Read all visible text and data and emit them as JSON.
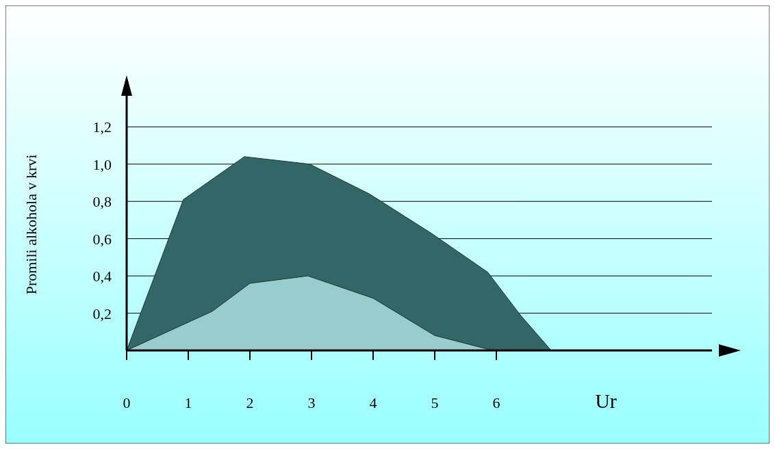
{
  "chart_data": {
    "type": "area",
    "xlabel": "Ur",
    "ylabel": "Promili alkohola v krvi",
    "xlim": [
      0,
      9.5
    ],
    "ylim": [
      0,
      1.44
    ],
    "xticks": [
      0,
      1,
      2,
      3,
      4,
      5,
      6
    ],
    "yticks": [
      {
        "value": 0.2,
        "label": "0,2"
      },
      {
        "value": 0.4,
        "label": "0,4"
      },
      {
        "value": 0.6,
        "label": "0,6"
      },
      {
        "value": 0.8,
        "label": "0,8"
      },
      {
        "value": 1.0,
        "label": "1,0"
      },
      {
        "value": 1.2,
        "label": "1,2"
      }
    ],
    "grid": "y",
    "series": [
      {
        "color": "#336666",
        "x": [
          0,
          0.92,
          1.91,
          2.97,
          3.94,
          4.94,
          5.86,
          6.39,
          6.89
        ],
        "values": [
          0,
          0.81,
          1.04,
          1.0,
          0.84,
          0.63,
          0.42,
          0.19,
          0
        ]
      },
      {
        "color": "#99cccc",
        "x": [
          0,
          1.39,
          2,
          2.94,
          4,
          5,
          5.94
        ],
        "values": [
          0,
          0.21,
          0.36,
          0.4,
          0.28,
          0.08,
          0
        ]
      }
    ]
  }
}
